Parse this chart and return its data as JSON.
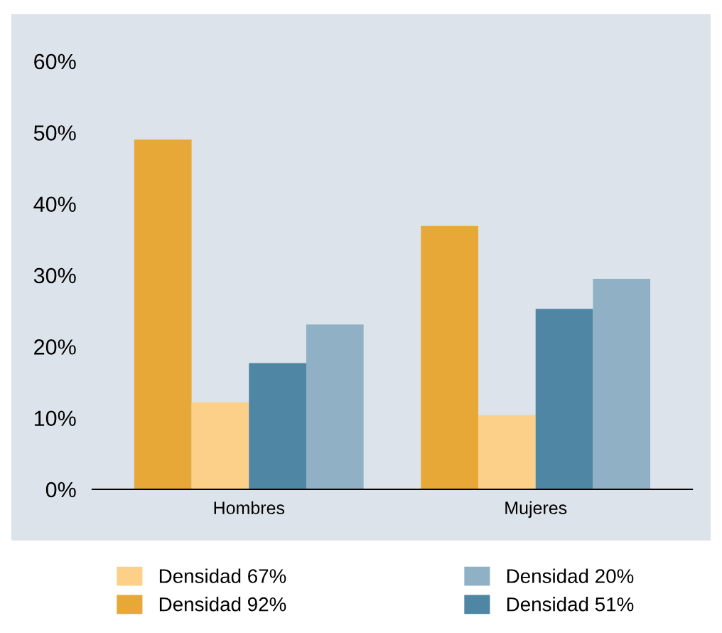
{
  "chart_data": {
    "type": "bar",
    "categories": [
      "Hombres",
      "Mujeres"
    ],
    "series": [
      {
        "name": "Densidad 92%",
        "color": "#e8a838",
        "values": [
          49,
          36.9
        ]
      },
      {
        "name": "Densidad 67%",
        "color": "#fdd08a",
        "values": [
          12.2,
          10.4
        ]
      },
      {
        "name": "Densidad 51%",
        "color": "#4f86a3",
        "values": [
          17.7,
          25.3
        ]
      },
      {
        "name": "Densidad 20%",
        "color": "#8fb0c5",
        "values": [
          23.1,
          29.5
        ]
      }
    ],
    "ylim": [
      0,
      60
    ],
    "yticks": [
      {
        "value": 0,
        "label": "0%"
      },
      {
        "value": 10,
        "label": "10%"
      },
      {
        "value": 20,
        "label": "20%"
      },
      {
        "value": 30,
        "label": "30%"
      },
      {
        "value": 40,
        "label": "40%"
      },
      {
        "value": 50,
        "label": "50%"
      },
      {
        "value": 60,
        "label": "60%"
      }
    ],
    "grid": false,
    "legend": "bottom"
  }
}
